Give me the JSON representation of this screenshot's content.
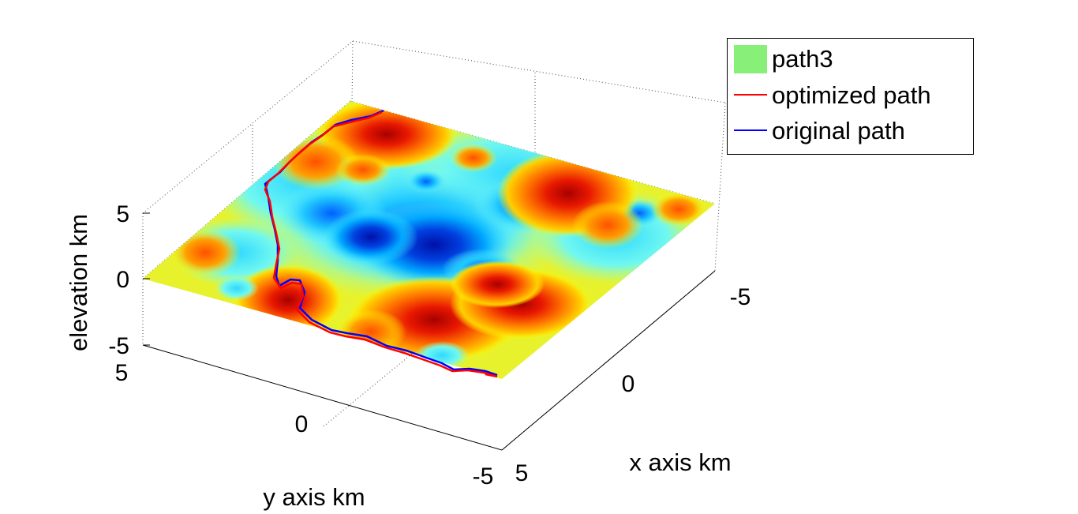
{
  "chart_data": {
    "type": "surface",
    "xlabel": "x axis km",
    "ylabel": "y axis km",
    "zlabel": "elevation km",
    "xlim": [
      -5,
      5
    ],
    "ylim": [
      -5,
      5
    ],
    "zlim": [
      -5,
      5
    ],
    "x_ticks": [
      "5",
      "0",
      "-5"
    ],
    "y_ticks": [
      "5",
      "0",
      "-5"
    ],
    "z_ticks": [
      "5",
      "0",
      "-5"
    ],
    "grid": true,
    "legend_position": "top-right",
    "colormap": "jet",
    "series": [
      {
        "name": "path3",
        "kind": "surface",
        "color": "#88f078"
      },
      {
        "name": "optimized path",
        "kind": "line",
        "color": "#ff0000",
        "points": [
          [
            -3.2,
            4.0
          ],
          [
            -4.0,
            3.6
          ],
          [
            -4.5,
            2.8
          ],
          [
            -4.8,
            1.6
          ],
          [
            -5.0,
            0.6
          ],
          [
            -4.9,
            -0.4
          ],
          [
            -4.6,
            -1.4
          ],
          [
            -4.2,
            -2.4
          ],
          [
            -3.5,
            -3.4
          ],
          [
            -2.6,
            -4.3
          ],
          [
            -1.8,
            -4.8
          ],
          [
            -0.9,
            -4.6
          ],
          [
            0.0,
            -4.3
          ],
          [
            0.8,
            -4.6
          ],
          [
            1.8,
            -4.4
          ],
          [
            2.8,
            -4.6
          ],
          [
            3.8,
            -4.5
          ],
          [
            4.6,
            -4.8
          ],
          [
            4.9,
            -4.9
          ]
        ]
      },
      {
        "name": "original path",
        "kind": "line",
        "color": "#0000ff",
        "points": [
          [
            -3.1,
            4.1
          ],
          [
            -3.9,
            3.7
          ],
          [
            -4.5,
            2.9
          ],
          [
            -4.7,
            1.7
          ],
          [
            -4.9,
            0.7
          ],
          [
            -4.8,
            -0.3
          ],
          [
            -4.5,
            -1.3
          ],
          [
            -4.1,
            -2.3
          ],
          [
            -3.4,
            -3.3
          ],
          [
            -2.5,
            -4.2
          ],
          [
            -1.7,
            -4.7
          ],
          [
            -0.8,
            -4.5
          ],
          [
            0.1,
            -4.2
          ],
          [
            0.9,
            -4.5
          ],
          [
            1.9,
            -4.3
          ],
          [
            2.9,
            -4.5
          ],
          [
            3.9,
            -4.4
          ],
          [
            4.6,
            -4.7
          ],
          [
            4.9,
            -4.8
          ]
        ]
      }
    ]
  }
}
